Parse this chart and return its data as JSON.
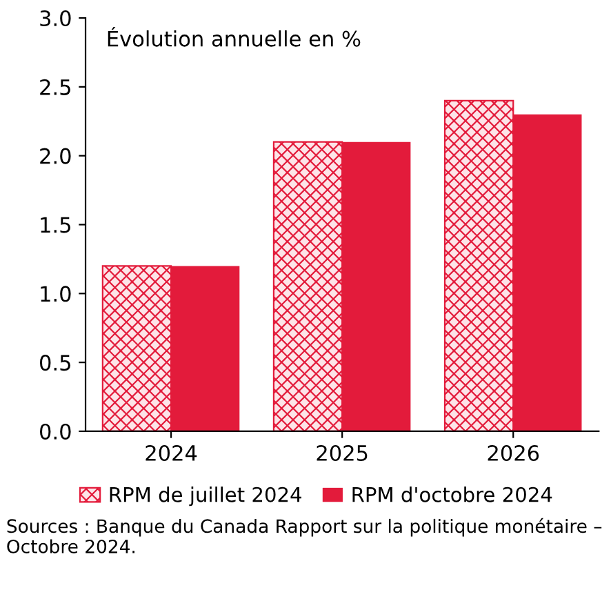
{
  "chart_data": {
    "type": "bar",
    "title": "Évolution annuelle en %",
    "categories": [
      "2024",
      "2025",
      "2026"
    ],
    "series": [
      {
        "name": "RPM de juillet 2024",
        "color": "#e31b3b",
        "values": [
          1.2,
          2.1,
          2.4
        ]
      },
      {
        "name": "RPM d'octobre 2024",
        "color": "#e31b3b",
        "values": [
          1.2,
          2.1,
          2.3
        ]
      }
    ],
    "ylim": [
      0,
      3
    ],
    "yticks": [
      {
        "value": 0,
        "label": "0.0"
      },
      {
        "value": 0.5,
        "label": "0.5"
      },
      {
        "value": 1,
        "label": "1.0"
      },
      {
        "value": 1.5,
        "label": "1.5"
      },
      {
        "value": 2,
        "label": "2.0"
      },
      {
        "value": 2.5,
        "label": "2.5"
      },
      {
        "value": 3,
        "label": "3.0"
      }
    ],
    "grid": false,
    "legend": "bottom",
    "annotations": [
      "Sources : Banque du Canada Rapport sur la politique monétaire – Octobre 2024."
    ]
  }
}
